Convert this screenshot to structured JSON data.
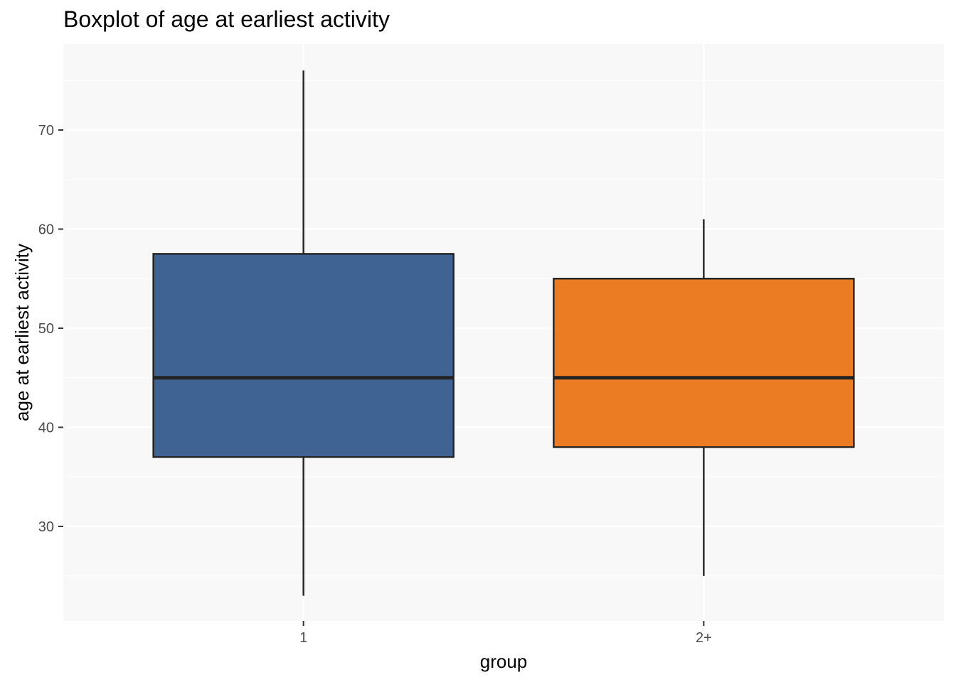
{
  "chart_data": {
    "type": "boxplot",
    "title": "Boxplot of age at earliest activity",
    "xlabel": "group",
    "ylabel": "age at earliest activity",
    "ylim": [
      20.5,
      78.5
    ],
    "yticks": [
      30,
      40,
      50,
      60,
      70
    ],
    "grid": true,
    "legend": "none",
    "categories": [
      "1",
      "2+"
    ],
    "boxes": [
      {
        "category": "1",
        "min": 23,
        "q1": 37,
        "median": 45,
        "q3": 57.5,
        "max": 76,
        "color": "#3f6493"
      },
      {
        "category": "2+",
        "min": 25,
        "q1": 38,
        "median": 45,
        "q3": 55,
        "max": 61,
        "color": "#ec7c24"
      }
    ]
  }
}
